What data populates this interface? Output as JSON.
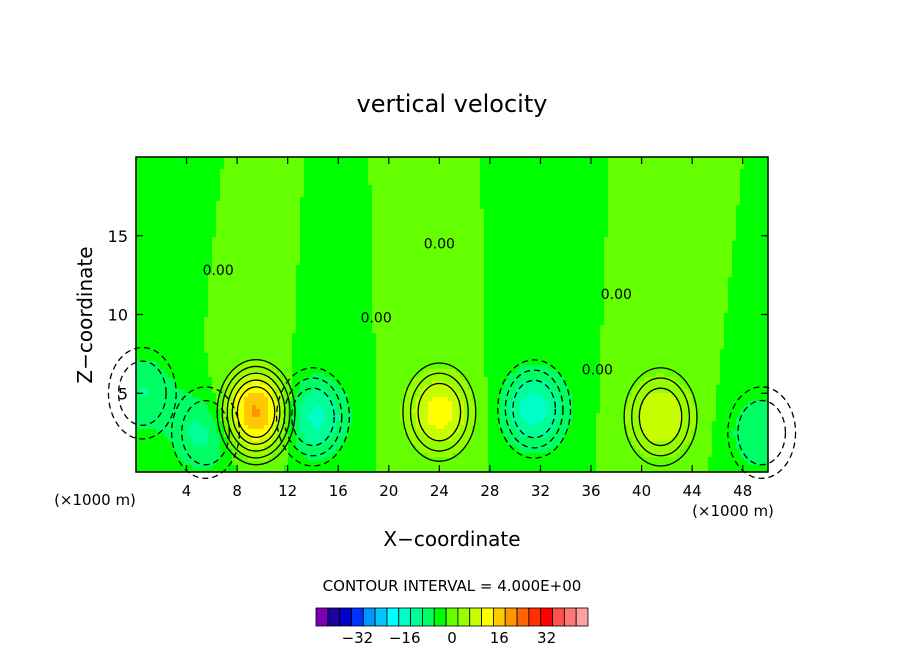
{
  "chart_data": {
    "type": "heatmap",
    "title": "vertical velocity",
    "xlabel": "X−coordinate",
    "ylabel": "Z−coordinate",
    "x_unit_left": "(×1000 m)",
    "x_unit_right": "(×1000 m)",
    "xlim": [
      0,
      50
    ],
    "ylim": [
      0,
      20
    ],
    "x_ticks": [
      4,
      8,
      12,
      16,
      20,
      24,
      28,
      32,
      36,
      40,
      44,
      48
    ],
    "y_ticks": [
      5,
      10,
      15
    ],
    "contour_interval_text": "CONTOUR INTERVAL = 4.000E+00",
    "contour_labels": [
      {
        "text": "0.00",
        "x": 6.5,
        "y": 12.5
      },
      {
        "text": "0.00",
        "x": 24.0,
        "y": 14.2
      },
      {
        "text": "0.00",
        "x": 38.0,
        "y": 11.0
      },
      {
        "text": "0.00",
        "x": 36.5,
        "y": 6.2
      },
      {
        "text": "0.00",
        "x": 19.0,
        "y": 9.5
      }
    ],
    "colorbar": {
      "colors": [
        "#7a00b4",
        "#1e00a0",
        "#0000c8",
        "#0032ff",
        "#0096ff",
        "#00c8ff",
        "#00ffff",
        "#00ffc8",
        "#00ff96",
        "#00ff64",
        "#00ff00",
        "#64ff00",
        "#96ff00",
        "#c8ff00",
        "#ffff00",
        "#ffc800",
        "#ff9600",
        "#ff6400",
        "#ff3200",
        "#ff0000",
        "#ff5050",
        "#ff7878",
        "#ffa0a0"
      ],
      "tick_labels": [
        "−32",
        "−16",
        "0",
        "16",
        "32"
      ],
      "tick_values": [
        -32,
        -16,
        0,
        16,
        32
      ]
    },
    "extrema": [
      {
        "x": 9.5,
        "z": 3.8,
        "value": 22,
        "kind": "max"
      },
      {
        "x": 24.0,
        "z": 3.8,
        "value": 14,
        "kind": "max"
      },
      {
        "x": 41.5,
        "z": 3.5,
        "value": 12,
        "kind": "max"
      },
      {
        "x": 5.5,
        "z": 2.5,
        "value": -10,
        "kind": "min"
      },
      {
        "x": 14.0,
        "z": 3.5,
        "value": -14,
        "kind": "min"
      },
      {
        "x": 31.5,
        "z": 4.0,
        "value": -14,
        "kind": "min"
      },
      {
        "x": 0.5,
        "z": 5.0,
        "value": -8,
        "kind": "min"
      },
      {
        "x": 49.5,
        "z": 2.5,
        "value": -8,
        "kind": "min"
      }
    ],
    "grid": false
  }
}
